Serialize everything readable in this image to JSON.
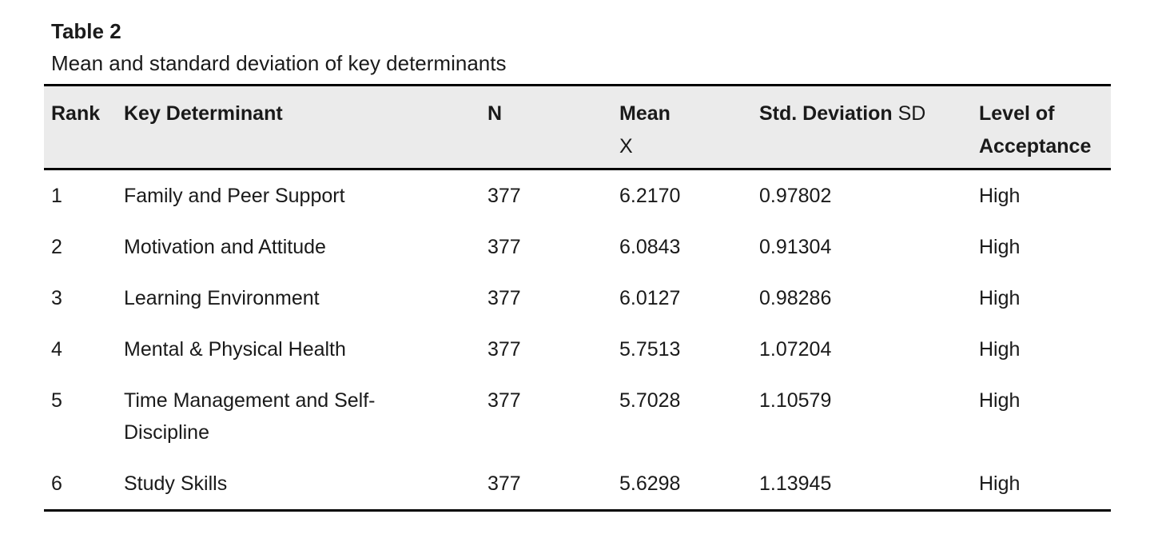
{
  "page": {
    "label": "Table 2",
    "caption": "Mean and standard deviation of key determinants"
  },
  "table": {
    "headers": {
      "rank": "Rank",
      "determinant": "Key Determinant",
      "n": "N",
      "mean_line1": "Mean",
      "mean_line2": "X",
      "sd_main": "Std. Deviation",
      "sd_suffix": " SD",
      "level": "Level of\nAcceptance"
    },
    "rows": [
      {
        "rank": "1",
        "determinant": "Family and Peer Support",
        "n": "377",
        "mean": "6.2170",
        "sd": "0.97802",
        "level": "High"
      },
      {
        "rank": "2",
        "determinant": "Motivation and Attitude",
        "n": "377",
        "mean": "6.0843",
        "sd": "0.91304",
        "level": "High"
      },
      {
        "rank": "3",
        "determinant": "Learning Environment",
        "n": "377",
        "mean": "6.0127",
        "sd": "0.98286",
        "level": "High"
      },
      {
        "rank": "4",
        "determinant": "Mental & Physical Health",
        "n": "377",
        "mean": "5.7513",
        "sd": "1.07204",
        "level": "High"
      },
      {
        "rank": "5",
        "determinant": "Time Management and Self-\nDiscipline",
        "n": "377",
        "mean": "5.7028",
        "sd": "1.10579",
        "level": "High"
      },
      {
        "rank": "6",
        "determinant": "Study Skills",
        "n": "377",
        "mean": "5.6298",
        "sd": "1.13945",
        "level": "High"
      }
    ]
  },
  "colors": {
    "header_background": "#ebebeb",
    "rule": "#000000",
    "text": "#1a1a1a",
    "page_background": "#ffffff"
  }
}
